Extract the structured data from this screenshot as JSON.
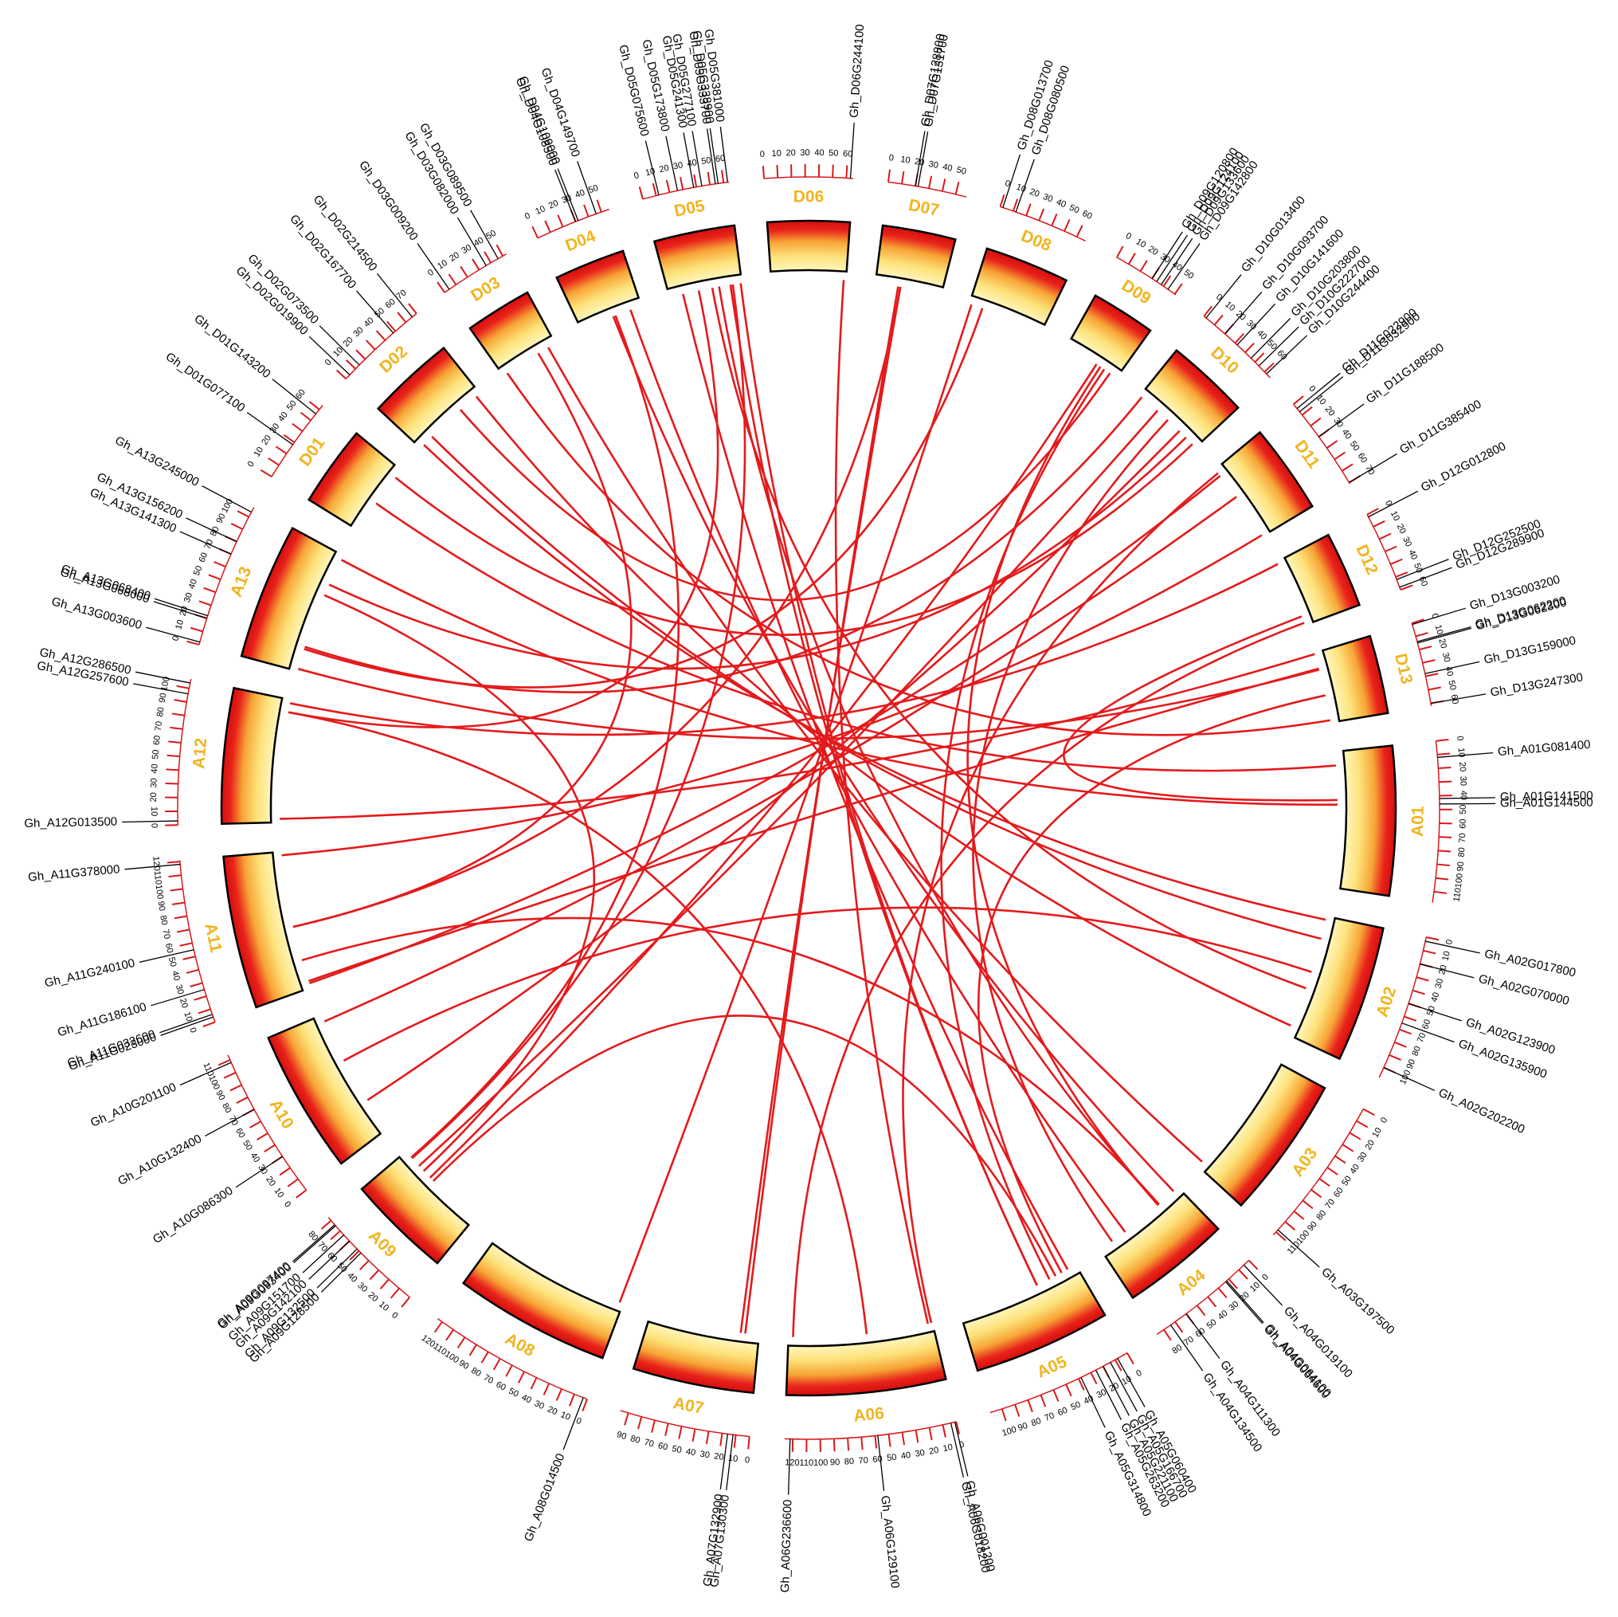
{
  "chart_data": {
    "type": "circos",
    "label_color": "#f0b41e",
    "link_color": "#e31a1c",
    "tick_color": "#d7191c",
    "chromosomes": [
      {
        "name": "D06",
        "length": 65,
        "ticks": [
          0,
          10,
          20,
          30,
          40,
          50,
          60
        ]
      },
      {
        "name": "D07",
        "length": 58,
        "ticks": [
          0,
          10,
          20,
          30,
          40,
          50
        ]
      },
      {
        "name": "D08",
        "length": 67,
        "ticks": [
          0,
          10,
          20,
          30,
          40,
          50,
          60
        ]
      },
      {
        "name": "D09",
        "length": 51,
        "ticks": [
          0,
          10,
          20,
          30,
          40,
          50
        ]
      },
      {
        "name": "D10",
        "length": 66,
        "ticks": [
          0,
          10,
          20,
          30,
          40,
          50,
          60
        ]
      },
      {
        "name": "D11",
        "length": 71,
        "ticks": [
          0,
          10,
          20,
          30,
          40,
          50,
          60,
          70
        ]
      },
      {
        "name": "D12",
        "length": 60,
        "ticks": [
          0,
          10,
          20,
          30,
          40,
          50,
          60
        ]
      },
      {
        "name": "D13",
        "length": 62,
        "ticks": [
          0,
          10,
          20,
          30,
          40,
          50,
          60
        ]
      },
      {
        "name": "A01",
        "length": 118,
        "ticks": [
          0,
          10,
          20,
          30,
          40,
          50,
          60,
          70,
          80,
          90,
          100,
          110
        ]
      },
      {
        "name": "A02",
        "length": 108,
        "ticks": [
          0,
          10,
          20,
          30,
          40,
          50,
          60,
          70,
          80,
          90,
          100
        ]
      },
      {
        "name": "A03",
        "length": 113,
        "ticks": [
          0,
          10,
          20,
          30,
          40,
          50,
          60,
          70,
          80,
          90,
          100,
          110
        ]
      },
      {
        "name": "A04",
        "length": 86,
        "ticks": [
          0,
          10,
          20,
          30,
          40,
          50,
          60,
          70,
          80
        ]
      },
      {
        "name": "A05",
        "length": 109,
        "ticks": [
          0,
          10,
          20,
          30,
          40,
          50,
          60,
          70,
          80,
          90,
          100
        ]
      },
      {
        "name": "A06",
        "length": 126,
        "ticks": [
          0,
          10,
          20,
          30,
          40,
          50,
          60,
          70,
          80,
          90,
          100,
          110,
          120
        ]
      },
      {
        "name": "A07",
        "length": 96,
        "ticks": [
          0,
          10,
          20,
          30,
          40,
          50,
          60,
          70,
          80,
          90
        ]
      },
      {
        "name": "A08",
        "length": 124,
        "ticks": [
          0,
          10,
          20,
          30,
          40,
          50,
          60,
          70,
          80,
          90,
          100,
          110,
          120
        ]
      },
      {
        "name": "A09",
        "length": 83,
        "ticks": [
          0,
          10,
          20,
          30,
          40,
          50,
          60,
          70,
          80
        ]
      },
      {
        "name": "A10",
        "length": 114,
        "ticks": [
          0,
          10,
          20,
          30,
          40,
          50,
          60,
          70,
          80,
          90,
          100,
          110
        ]
      },
      {
        "name": "A11",
        "length": 121,
        "ticks": [
          0,
          10,
          20,
          30,
          40,
          50,
          60,
          70,
          80,
          90,
          100,
          110,
          120
        ]
      },
      {
        "name": "A12",
        "length": 107,
        "ticks": [
          0,
          10,
          20,
          30,
          40,
          50,
          60,
          70,
          80,
          90,
          100
        ]
      },
      {
        "name": "A13",
        "length": 108,
        "ticks": [
          0,
          10,
          20,
          30,
          40,
          50,
          60,
          70,
          80,
          90,
          100
        ]
      },
      {
        "name": "D01",
        "length": 64,
        "ticks": [
          0,
          10,
          20,
          30,
          40,
          50,
          60
        ]
      },
      {
        "name": "D02",
        "length": 70,
        "ticks": [
          0,
          10,
          20,
          30,
          40,
          50,
          60,
          70
        ]
      },
      {
        "name": "D03",
        "length": 53,
        "ticks": [
          0,
          10,
          20,
          30,
          40,
          50
        ]
      },
      {
        "name": "D04",
        "length": 56,
        "ticks": [
          0,
          10,
          20,
          30,
          40,
          50
        ]
      },
      {
        "name": "D05",
        "length": 64,
        "ticks": [
          0,
          10,
          20,
          30,
          40,
          50,
          60
        ]
      }
    ],
    "genes": [
      {
        "name": "Gh_A01G081400",
        "chr": "A01",
        "pos": 12
      },
      {
        "name": "Gh_A01G141500",
        "chr": "A01",
        "pos": 42
      },
      {
        "name": "Gh_A01G144500",
        "chr": "A01",
        "pos": 46
      },
      {
        "name": "Gh_A02G017800",
        "chr": "A02",
        "pos": 3
      },
      {
        "name": "Gh_A02G070000",
        "chr": "A02",
        "pos": 20
      },
      {
        "name": "Gh_A02G123900",
        "chr": "A02",
        "pos": 50
      },
      {
        "name": "Gh_A02G135900",
        "chr": "A02",
        "pos": 65
      },
      {
        "name": "Gh_A02G202200",
        "chr": "A02",
        "pos": 100
      },
      {
        "name": "Gh_A03G197500",
        "chr": "A03",
        "pos": 108
      },
      {
        "name": "Gh_A04G019100",
        "chr": "A04",
        "pos": 5
      },
      {
        "name": "Gh_A04G064100",
        "chr": "A04",
        "pos": 22
      },
      {
        "name": "Gh_A04G064600",
        "chr": "A04",
        "pos": 23
      },
      {
        "name": "Gh_A04G111300",
        "chr": "A04",
        "pos": 60
      },
      {
        "name": "Gh_A04G134500",
        "chr": "A04",
        "pos": 74
      },
      {
        "name": "Gh_A05G060400",
        "chr": "A05",
        "pos": 8
      },
      {
        "name": "Gh_A05G166700",
        "chr": "A05",
        "pos": 14
      },
      {
        "name": "Gh_A05G221100",
        "chr": "A05",
        "pos": 20
      },
      {
        "name": "Gh_A05G263200",
        "chr": "A05",
        "pos": 26
      },
      {
        "name": "Gh_A05G314800",
        "chr": "A05",
        "pos": 38
      },
      {
        "name": "Gh_A06G001200",
        "chr": "A06",
        "pos": 1
      },
      {
        "name": "Gh_A06G018200",
        "chr": "A06",
        "pos": 4
      },
      {
        "name": "Gh_A06G129100",
        "chr": "A06",
        "pos": 58
      },
      {
        "name": "Gh_A06G236600",
        "chr": "A06",
        "pos": 122
      },
      {
        "name": "Gh_A07G130300",
        "chr": "A07",
        "pos": 12
      },
      {
        "name": "Gh_A07G132900",
        "chr": "A07",
        "pos": 16
      },
      {
        "name": "Gh_A08G014500",
        "chr": "A08",
        "pos": 3
      },
      {
        "name": "Gh_A09G128500",
        "chr": "A09",
        "pos": 48
      },
      {
        "name": "Gh_A09G132500",
        "chr": "A09",
        "pos": 52
      },
      {
        "name": "Gh_A09G142100",
        "chr": "A09",
        "pos": 60
      },
      {
        "name": "Gh_A09G151700",
        "chr": "A09",
        "pos": 66
      },
      {
        "name": "Gh_A09G093400",
        "chr": "A09",
        "pos": 75
      },
      {
        "name": "Gh_A09G097400",
        "chr": "A09",
        "pos": 76
      },
      {
        "name": "Gh_A10G086300",
        "chr": "A10",
        "pos": 30
      },
      {
        "name": "Gh_A10G132400",
        "chr": "A10",
        "pos": 70
      },
      {
        "name": "Gh_A10G201100",
        "chr": "A10",
        "pos": 108
      },
      {
        "name": "Gh_A11G023000",
        "chr": "A11",
        "pos": 4
      },
      {
        "name": "Gh_A11G032600",
        "chr": "A11",
        "pos": 6
      },
      {
        "name": "Gh_A11G186100",
        "chr": "A11",
        "pos": 25
      },
      {
        "name": "Gh_A11G240100",
        "chr": "A11",
        "pos": 55
      },
      {
        "name": "Gh_A11G378000",
        "chr": "A11",
        "pos": 118
      },
      {
        "name": "Gh_A12G013500",
        "chr": "A12",
        "pos": 3
      },
      {
        "name": "Gh_A12G257600",
        "chr": "A12",
        "pos": 96
      },
      {
        "name": "Gh_A12G286500",
        "chr": "A12",
        "pos": 104
      },
      {
        "name": "Gh_A13G003600",
        "chr": "A13",
        "pos": 2
      },
      {
        "name": "Gh_A13G068000",
        "chr": "A13",
        "pos": 20
      },
      {
        "name": "Gh_A13G068400",
        "chr": "A13",
        "pos": 22
      },
      {
        "name": "Gh_A13G141300",
        "chr": "A13",
        "pos": 70
      },
      {
        "name": "Gh_A13G156200",
        "chr": "A13",
        "pos": 80
      },
      {
        "name": "Gh_A13G245000",
        "chr": "A13",
        "pos": 104
      },
      {
        "name": "Gh_D01G077100",
        "chr": "D01",
        "pos": 28
      },
      {
        "name": "Gh_D01G143200",
        "chr": "D01",
        "pos": 56
      },
      {
        "name": "Gh_D02G019900",
        "chr": "D02",
        "pos": 4
      },
      {
        "name": "Gh_D02G073500",
        "chr": "D02",
        "pos": 14
      },
      {
        "name": "Gh_D02G167700",
        "chr": "D02",
        "pos": 48
      },
      {
        "name": "Gh_D02G214500",
        "chr": "D02",
        "pos": 66
      },
      {
        "name": "Gh_D03G009200",
        "chr": "D03",
        "pos": 4
      },
      {
        "name": "Gh_D03G082000",
        "chr": "D03",
        "pos": 36
      },
      {
        "name": "Gh_D03G089500",
        "chr": "D03",
        "pos": 46
      },
      {
        "name": "Gh_D04G108500",
        "chr": "D04",
        "pos": 30
      },
      {
        "name": "Gh_D04G109000",
        "chr": "D04",
        "pos": 32
      },
      {
        "name": "Gh_D04G149700",
        "chr": "D04",
        "pos": 46
      },
      {
        "name": "Gh_D05G075600",
        "chr": "D05",
        "pos": 12
      },
      {
        "name": "Gh_D05G173800",
        "chr": "D05",
        "pos": 26
      },
      {
        "name": "Gh_D05G241300",
        "chr": "D05",
        "pos": 38
      },
      {
        "name": "Gh_D05G277100",
        "chr": "D05",
        "pos": 44
      },
      {
        "name": "Gh_D05G333700",
        "chr": "D05",
        "pos": 54
      },
      {
        "name": "Gh_D05G338900",
        "chr": "D05",
        "pos": 56
      },
      {
        "name": "Gh_D05G381000",
        "chr": "D05",
        "pos": 63
      },
      {
        "name": "Gh_D06G244100",
        "chr": "D06",
        "pos": 63
      },
      {
        "name": "Gh_D07G128800",
        "chr": "D07",
        "pos": 20
      },
      {
        "name": "Gh_D07G131700",
        "chr": "D07",
        "pos": 22
      },
      {
        "name": "Gh_D08G013700",
        "chr": "D08",
        "pos": 2
      },
      {
        "name": "Gh_D08G080500",
        "chr": "D08",
        "pos": 12
      },
      {
        "name": "Gh_D09G120800",
        "chr": "D09",
        "pos": 30
      },
      {
        "name": "Gh_D09G124100",
        "chr": "D09",
        "pos": 34
      },
      {
        "name": "Gh_D09G133600",
        "chr": "D09",
        "pos": 38
      },
      {
        "name": "Gh_D09G142800",
        "chr": "D09",
        "pos": 44
      },
      {
        "name": "Gh_D10G013400",
        "chr": "D10",
        "pos": 2
      },
      {
        "name": "Gh_D10G093700",
        "chr": "D10",
        "pos": 20
      },
      {
        "name": "Gh_D10G141600",
        "chr": "D10",
        "pos": 32
      },
      {
        "name": "Gh_D10G203800",
        "chr": "D10",
        "pos": 46
      },
      {
        "name": "Gh_D10G222700",
        "chr": "D10",
        "pos": 54
      },
      {
        "name": "Gh_D10G244400",
        "chr": "D10",
        "pos": 62
      },
      {
        "name": "Gh_D11G022900",
        "chr": "D11",
        "pos": 4
      },
      {
        "name": "Gh_D11G032900",
        "chr": "D11",
        "pos": 7
      },
      {
        "name": "Gh_D11G188500",
        "chr": "D11",
        "pos": 30
      },
      {
        "name": "Gh_D11G385400",
        "chr": "D11",
        "pos": 70
      },
      {
        "name": "Gh_D12G012800",
        "chr": "D12",
        "pos": 2
      },
      {
        "name": "Gh_D12G252500",
        "chr": "D12",
        "pos": 52
      },
      {
        "name": "Gh_D12G289900",
        "chr": "D12",
        "pos": 58
      },
      {
        "name": "Gh_D13G003200",
        "chr": "D13",
        "pos": 1
      },
      {
        "name": "Gh_D13G062200",
        "chr": "D13",
        "pos": 14
      },
      {
        "name": "Gh_D13G062300",
        "chr": "D13",
        "pos": 15
      },
      {
        "name": "Gh_D13G159000",
        "chr": "D13",
        "pos": 38
      },
      {
        "name": "Gh_D13G247300",
        "chr": "D13",
        "pos": 60
      }
    ],
    "links": [
      [
        "Gh_A01G081400",
        "Gh_D01G077100"
      ],
      [
        "Gh_A01G141500",
        "Gh_D12G252500"
      ],
      [
        "Gh_A01G144500",
        "Gh_A13G245000"
      ],
      [
        "Gh_A02G017800",
        "Gh_D02G019900"
      ],
      [
        "Gh_A02G070000",
        "Gh_D02G073500"
      ],
      [
        "Gh_A02G123900",
        "Gh_A10G132400"
      ],
      [
        "Gh_A02G135900",
        "Gh_D05G241300"
      ],
      [
        "Gh_A02G202200",
        "Gh_D02G214500"
      ],
      [
        "Gh_A03G197500",
        "Gh_D03G089500"
      ],
      [
        "Gh_A04G019100",
        "Gh_D04G108500"
      ],
      [
        "Gh_A04G064100",
        "Gh_A11G186100"
      ],
      [
        "Gh_A04G064600",
        "Gh_D09G124100"
      ],
      [
        "Gh_A04G111300",
        "Gh_D04G149700"
      ],
      [
        "Gh_A04G134500",
        "Gh_D10G141600"
      ],
      [
        "Gh_A05G060400",
        "Gh_D05G075600"
      ],
      [
        "Gh_A05G166700",
        "Gh_D13G159000"
      ],
      [
        "Gh_A05G221100",
        "Gh_A09G128500"
      ],
      [
        "Gh_A05G263200",
        "Gh_D09G133600"
      ],
      [
        "Gh_A05G314800",
        "Gh_D05G333700"
      ],
      [
        "Gh_A06G001200",
        "Gh_D11G022900"
      ],
      [
        "Gh_A06G018200",
        "Gh_D06G244100"
      ],
      [
        "Gh_A06G129100",
        "Gh_A12G257600"
      ],
      [
        "Gh_A06G236600",
        "Gh_D12G289900"
      ],
      [
        "Gh_A07G130300",
        "Gh_D07G128800"
      ],
      [
        "Gh_A07G132900",
        "Gh_D07G131700"
      ],
      [
        "Gh_A08G014500",
        "Gh_D08G013700"
      ],
      [
        "Gh_A09G132500",
        "Gh_D09G120800"
      ],
      [
        "Gh_A09G142100",
        "Gh_A13G141300"
      ],
      [
        "Gh_A09G151700",
        "Gh_D10G093700"
      ],
      [
        "Gh_A09G093400",
        "Gh_D05G338900"
      ],
      [
        "Gh_A09G097400",
        "Gh_D04G109000"
      ],
      [
        "Gh_A10G086300",
        "Gh_D10G203800"
      ],
      [
        "Gh_A10G201100",
        "Gh_D11G188500"
      ],
      [
        "Gh_A11G023000",
        "Gh_D11G032900"
      ],
      [
        "Gh_A11G032600",
        "Gh_D13G062200"
      ],
      [
        "Gh_A11G240100",
        "Gh_D03G082000"
      ],
      [
        "Gh_A11G378000",
        "Gh_D11G385400"
      ],
      [
        "Gh_A12G013500",
        "Gh_D13G003200"
      ],
      [
        "Gh_A12G286500",
        "Gh_D12G012800"
      ],
      [
        "Gh_A13G003600",
        "Gh_D13G062300"
      ],
      [
        "Gh_A13G068000",
        "Gh_D08G080500"
      ],
      [
        "Gh_A13G068400",
        "Gh_D10G013400"
      ],
      [
        "Gh_A13G156200",
        "Gh_D10G222700"
      ],
      [
        "Gh_D01G143200",
        "Gh_D10G244400"
      ],
      [
        "Gh_D02G167700",
        "Gh_D09G142800"
      ],
      [
        "Gh_D03G009200",
        "Gh_D13G247300"
      ],
      [
        "Gh_D05G173800",
        "Gh_A12G257600"
      ],
      [
        "Gh_D05G277100",
        "Gh_A04G064600"
      ],
      [
        "Gh_D05G381000",
        "Gh_A05G314800"
      ],
      [
        "Gh_D07G131700",
        "Gh_A11G240100"
      ]
    ]
  }
}
